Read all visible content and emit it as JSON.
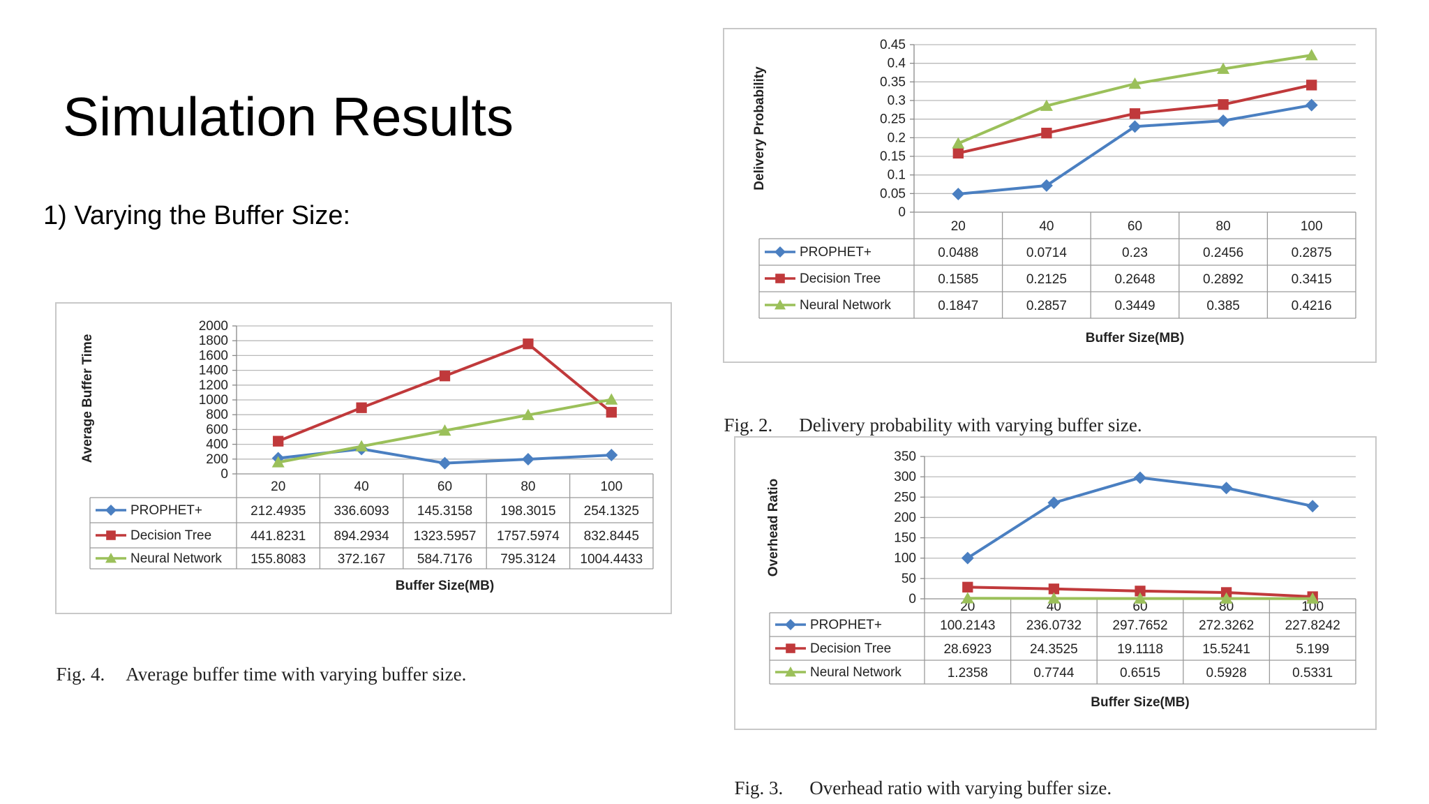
{
  "slide": {
    "title": "Simulation Results",
    "subtitle": "1) Varying the Buffer Size:"
  },
  "captions": {
    "fig4": {
      "label": "Fig. 4.",
      "text": "Average buffer time with varying buffer size."
    },
    "fig2": {
      "label": "Fig. 2.",
      "text": "Delivery probability with varying buffer size."
    },
    "fig3": {
      "label": "Fig. 3.",
      "text": "Overhead ratio with varying buffer size."
    }
  },
  "chart_data": [
    {
      "id": "fig4",
      "type": "line",
      "ylabel": "Average Buffer Time",
      "xlabel": "Buffer Size(MB)",
      "ylim": [
        0,
        2000
      ],
      "yticks": [
        "2000",
        "1800",
        "1600",
        "1400",
        "1200",
        "1000",
        "800",
        "600",
        "400",
        "200",
        "0"
      ],
      "categories": [
        "20",
        "40",
        "60",
        "80",
        "100"
      ],
      "grid": true,
      "legend": "data-table",
      "series": [
        {
          "name": "PROPHET+",
          "color": "#4a7fc1",
          "marker": "diamond",
          "values": [
            212.4935,
            336.6093,
            145.3158,
            198.3015,
            254.1325
          ],
          "labels": [
            "212.4935",
            "336.6093",
            "145.3158",
            "198.3015",
            "254.1325"
          ]
        },
        {
          "name": "Decision Tree",
          "color": "#c0393b",
          "marker": "square",
          "values": [
            441.8231,
            894.2934,
            1323.5957,
            1757.5974,
            832.8445
          ],
          "labels": [
            "441.8231",
            "894.2934",
            "1323.5957",
            "1757.5974",
            "832.8445"
          ]
        },
        {
          "name": "Neural Network",
          "color": "#9bc05a",
          "marker": "triangle",
          "values": [
            155.8083,
            372.167,
            584.7176,
            795.3124,
            1004.4433
          ],
          "labels": [
            "155.8083",
            "372.167",
            "584.7176",
            "795.3124",
            "1004.4433"
          ]
        }
      ]
    },
    {
      "id": "fig2",
      "type": "line",
      "ylabel": "Delivery Probability",
      "xlabel": "Buffer Size(MB)",
      "ylim": [
        0,
        0.45
      ],
      "yticks": [
        "0.45",
        "0.4",
        "0.35",
        "0.3",
        "0.25",
        "0.2",
        "0.15",
        "0.1",
        "0.05",
        "0"
      ],
      "categories": [
        "20",
        "40",
        "60",
        "80",
        "100"
      ],
      "grid": true,
      "legend": "data-table",
      "series": [
        {
          "name": "PROPHET+",
          "color": "#4a7fc1",
          "marker": "diamond",
          "values": [
            0.0488,
            0.0714,
            0.23,
            0.2456,
            0.2875
          ],
          "labels": [
            "0.0488",
            "0.0714",
            "0.23",
            "0.2456",
            "0.2875"
          ]
        },
        {
          "name": "Decision Tree",
          "color": "#c0393b",
          "marker": "square",
          "values": [
            0.1585,
            0.2125,
            0.2648,
            0.2892,
            0.3415
          ],
          "labels": [
            "0.1585",
            "0.2125",
            "0.2648",
            "0.2892",
            "0.3415"
          ]
        },
        {
          "name": "Neural Network",
          "color": "#9bc05a",
          "marker": "triangle",
          "values": [
            0.1847,
            0.2857,
            0.3449,
            0.385,
            0.4216
          ],
          "labels": [
            "0.1847",
            "0.2857",
            "0.3449",
            "0.385",
            "0.4216"
          ]
        }
      ]
    },
    {
      "id": "fig3",
      "type": "line",
      "ylabel": "Overhead Ratio",
      "xlabel": "Buffer Size(MB)",
      "ylim": [
        0,
        350
      ],
      "yticks": [
        "350",
        "300",
        "250",
        "200",
        "150",
        "100",
        "50",
        "0"
      ],
      "categories": [
        "20",
        "40",
        "60",
        "80",
        "100"
      ],
      "grid": true,
      "legend": "data-table",
      "series": [
        {
          "name": "PROPHET+",
          "color": "#4a7fc1",
          "marker": "diamond",
          "values": [
            100.2143,
            236.0732,
            297.7652,
            272.3262,
            227.8242
          ],
          "labels": [
            "100.2143",
            "236.0732",
            "297.7652",
            "272.3262",
            "227.8242"
          ]
        },
        {
          "name": "Decision Tree",
          "color": "#c0393b",
          "marker": "square",
          "values": [
            28.6923,
            24.3525,
            19.1118,
            15.5241,
            5.199
          ],
          "labels": [
            "28.6923",
            "24.3525",
            "19.1118",
            "15.5241",
            "5.199"
          ]
        },
        {
          "name": "Neural Network",
          "color": "#9bc05a",
          "marker": "triangle",
          "values": [
            1.2358,
            0.7744,
            0.6515,
            0.5928,
            0.5331
          ],
          "labels": [
            "1.2358",
            "0.7744",
            "0.6515",
            "0.5928",
            "0.5331"
          ]
        }
      ]
    }
  ]
}
